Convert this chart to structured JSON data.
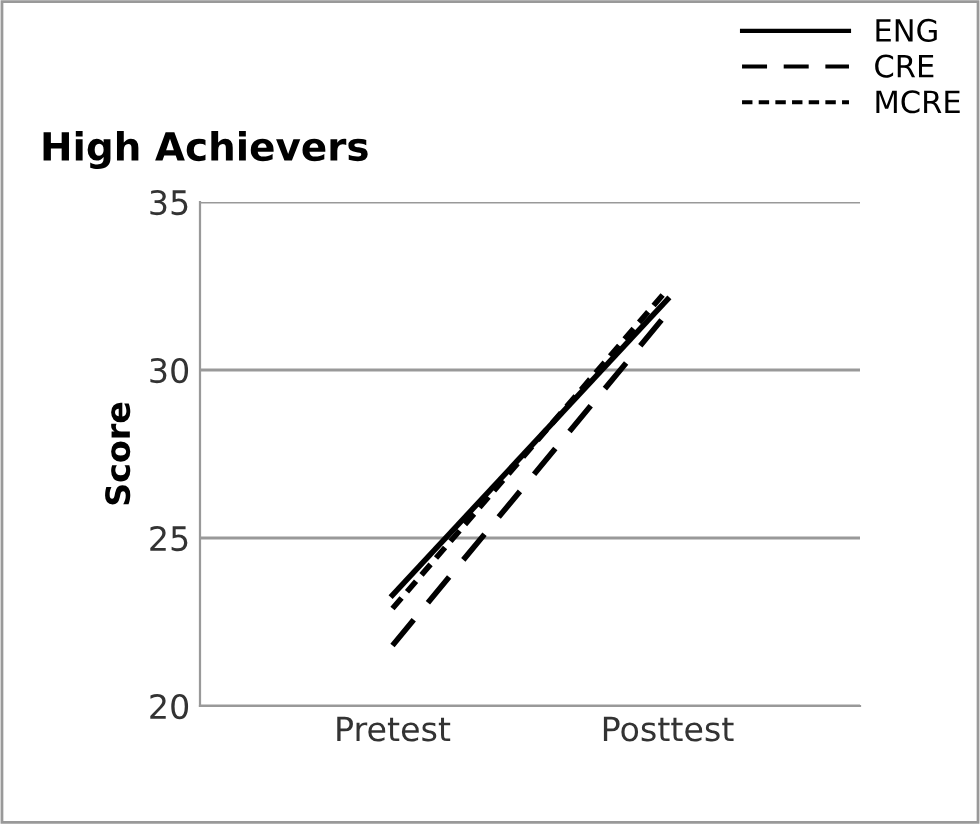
{
  "chart_data": {
    "type": "line",
    "title": "High Achievers",
    "ylabel": "Score",
    "categories": [
      "Pretest",
      "Posttest"
    ],
    "series": [
      {
        "name": "ENG",
        "color": "#000000",
        "line_style": "solid",
        "values": [
          23.3,
          32.1
        ]
      },
      {
        "name": "CRE",
        "color": "#000000",
        "line_style": "dashed",
        "values": [
          21.8,
          31.7
        ]
      },
      {
        "name": "MCRE",
        "color": "#000000",
        "line_style": "dotted",
        "values": [
          22.9,
          32.4
        ]
      }
    ],
    "ylim": [
      20,
      35
    ],
    "yticks": [
      20,
      25,
      30,
      35
    ],
    "grid": "y",
    "legend": "top right",
    "marker": "none"
  }
}
